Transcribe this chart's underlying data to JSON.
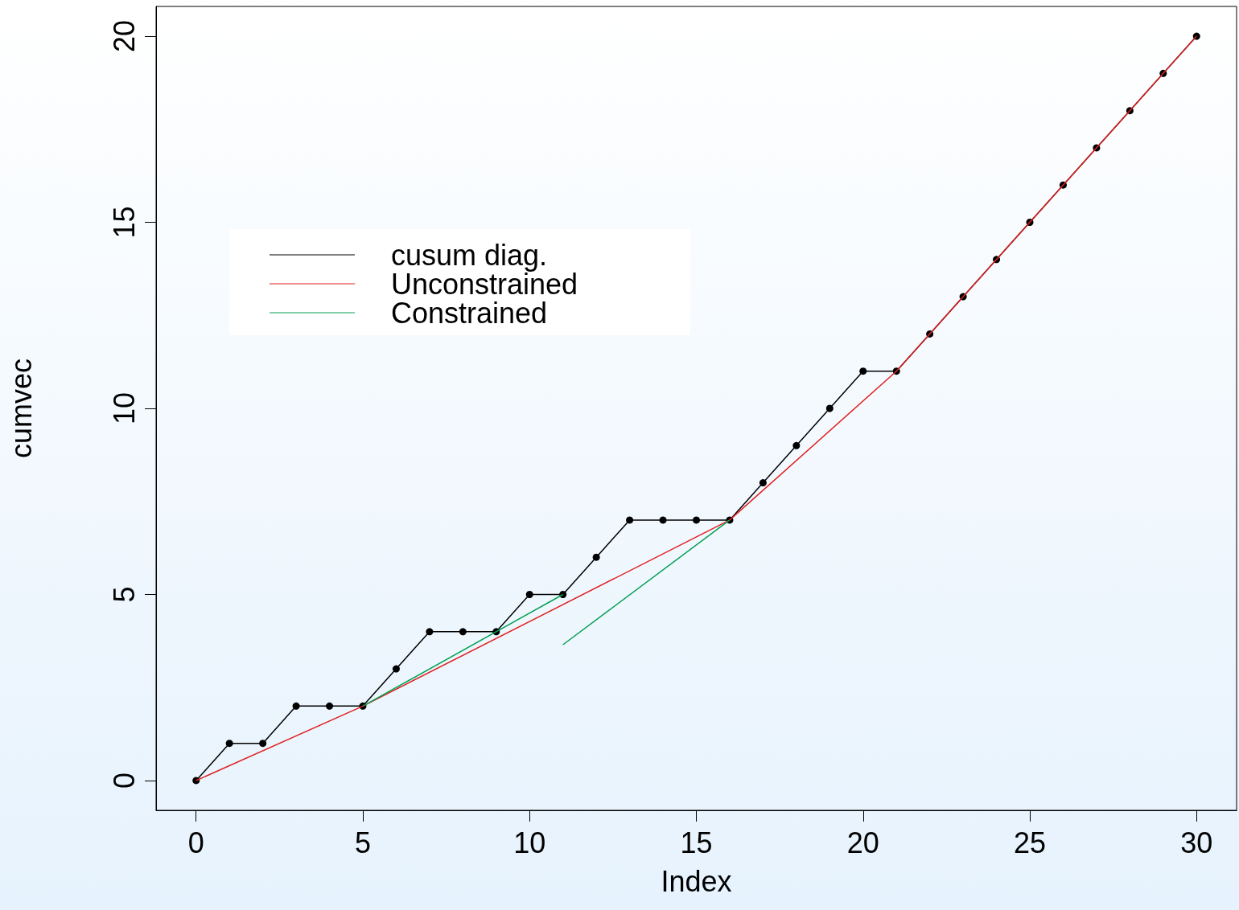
{
  "chart_data": {
    "type": "line",
    "xlabel": "Index",
    "ylabel": "cumvec",
    "xlim": [
      -1.2,
      31.2
    ],
    "ylim": [
      -0.8,
      20.8
    ],
    "xticks": [
      0,
      5,
      10,
      15,
      20,
      25,
      30
    ],
    "yticks": [
      0,
      5,
      10,
      15,
      20
    ],
    "legend": "top left",
    "series": [
      {
        "name": "cusum diag.",
        "color": "#000000",
        "marker": "circle",
        "x": [
          0,
          1,
          2,
          3,
          4,
          5,
          6,
          7,
          8,
          9,
          10,
          11,
          12,
          13,
          14,
          15,
          16,
          17,
          18,
          19,
          20,
          21,
          22,
          23,
          24,
          25,
          26,
          27,
          28,
          29,
          30
        ],
        "values": [
          0,
          1,
          1,
          2,
          2,
          2,
          3,
          4,
          4,
          4,
          5,
          5,
          6,
          7,
          7,
          7,
          7,
          8,
          9,
          10,
          11,
          11,
          12,
          13,
          14,
          15,
          16,
          17,
          18,
          19,
          20
        ]
      },
      {
        "name": "Unconstrained",
        "color": "#df2020",
        "marker": "none",
        "x": [
          0,
          5,
          16,
          21,
          30
        ],
        "values": [
          0,
          2,
          7,
          11,
          20
        ]
      },
      {
        "name": "Constrained",
        "color": "#00a050",
        "marker": "none",
        "x": [
          5,
          11
        ],
        "values": [
          2,
          5
        ]
      },
      {
        "color": "#00a050",
        "marker": "none",
        "x": [
          11,
          16
        ],
        "values": [
          3.65,
          7
        ]
      }
    ]
  }
}
